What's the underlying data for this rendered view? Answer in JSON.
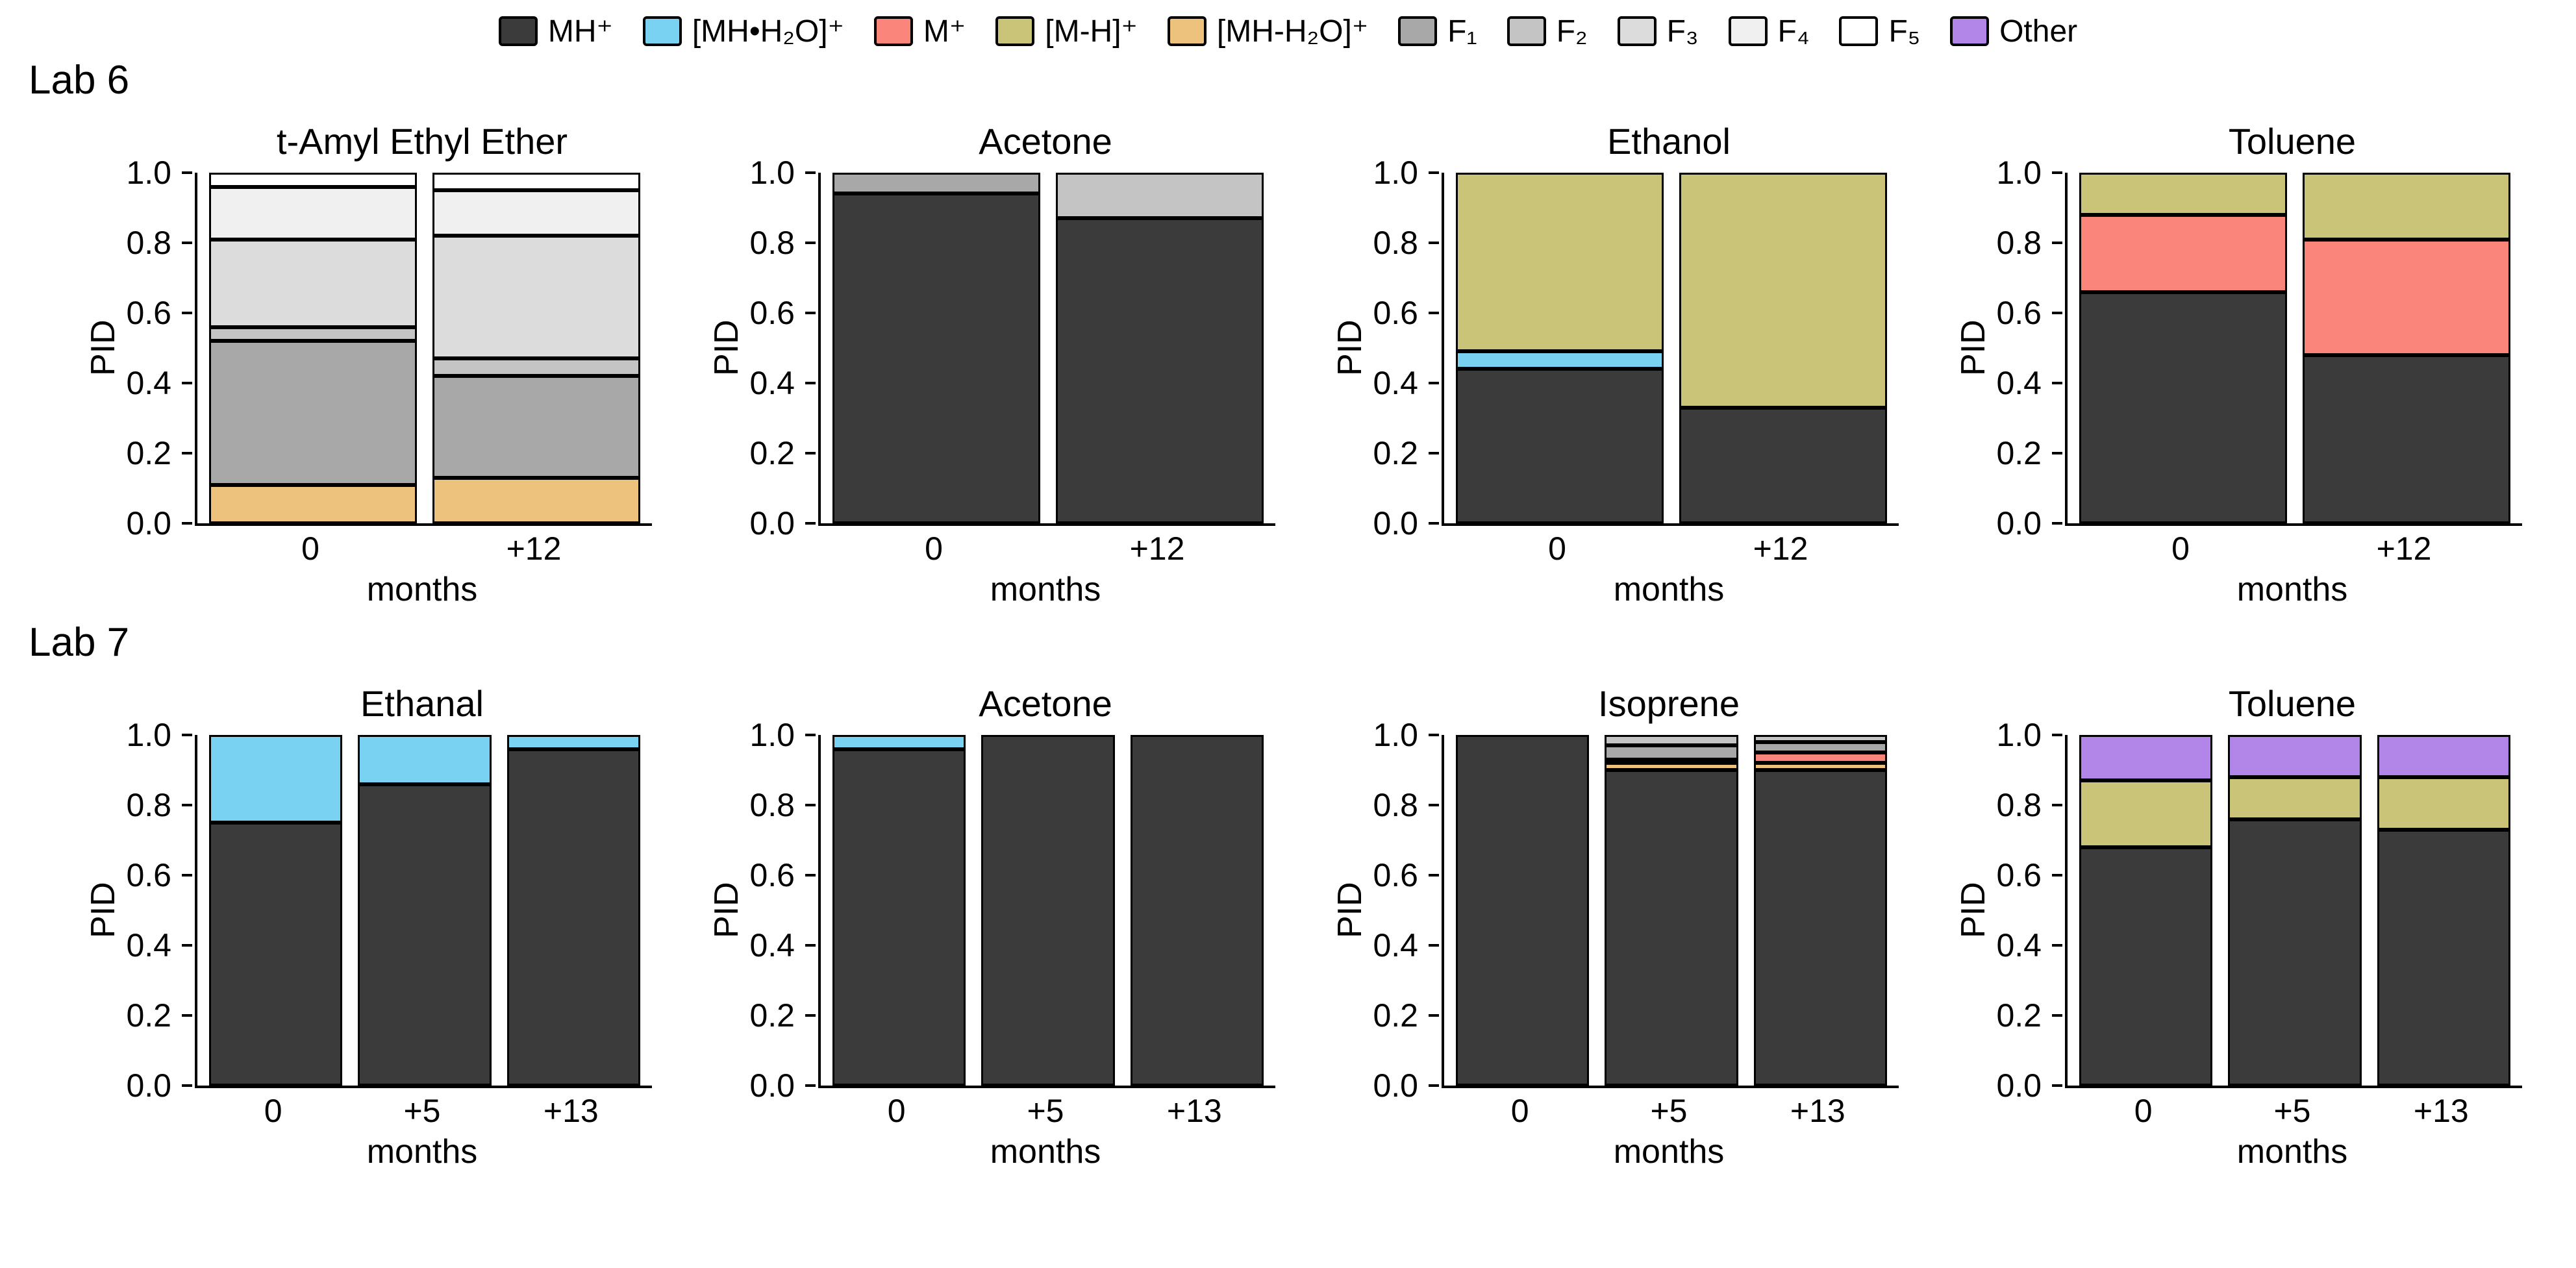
{
  "figure": {
    "rows": [
      {
        "label": "Lab 6"
      },
      {
        "label": "Lab 7"
      }
    ],
    "legend": [
      {
        "label": "MH⁺",
        "series": "MH⁺",
        "color": "#3b3b3b"
      },
      {
        "label": "[MH•H₂O]⁺",
        "series": "[MH•H₂O]⁺",
        "color": "#79d2f2"
      },
      {
        "label": "M⁺",
        "series": "M⁺",
        "color": "#f9857b"
      },
      {
        "label": "[M-H]⁺",
        "series": "[M-H]⁺",
        "color": "#c9c478"
      },
      {
        "label": "[MH-H₂O]⁺",
        "series": "[MH-H₂O]⁺",
        "color": "#ecc27d"
      },
      {
        "label": "F₁",
        "series": "F₁",
        "color": "#a8a8a8"
      },
      {
        "label": "F₂",
        "series": "F₂",
        "color": "#c4c4c4"
      },
      {
        "label": "F₃",
        "series": "F₃",
        "color": "#dcdcdc"
      },
      {
        "label": "F₄",
        "series": "F₄",
        "color": "#f0f0f0"
      },
      {
        "label": "F₅",
        "series": "F₅",
        "color": "#ffffff"
      },
      {
        "label": "Other",
        "series": "Other",
        "color": "#b286e8"
      }
    ]
  },
  "chart_data": [
    {
      "type": "bar",
      "stacked": true,
      "lab": "Lab 6",
      "title": "t-Amyl Ethyl Ether",
      "xlabel": "months",
      "ylabel": "PID",
      "ylim": [
        0,
        1
      ],
      "yticks": [
        0.0,
        0.2,
        0.4,
        0.6,
        0.8,
        1.0
      ],
      "categories": [
        "0",
        "+12"
      ],
      "series": [
        {
          "name": "[MH-H₂O]⁺",
          "values": [
            0.11,
            0.13
          ]
        },
        {
          "name": "F₁",
          "values": [
            0.41,
            0.29
          ]
        },
        {
          "name": "F₂",
          "values": [
            0.04,
            0.05
          ]
        },
        {
          "name": "F₃",
          "values": [
            0.25,
            0.35
          ]
        },
        {
          "name": "F₄",
          "values": [
            0.15,
            0.13
          ]
        },
        {
          "name": "F₅",
          "values": [
            0.04,
            0.05
          ]
        }
      ]
    },
    {
      "type": "bar",
      "stacked": true,
      "lab": "Lab 6",
      "title": "Acetone",
      "xlabel": "months",
      "ylabel": "PID",
      "ylim": [
        0,
        1
      ],
      "yticks": [
        0.0,
        0.2,
        0.4,
        0.6,
        0.8,
        1.0
      ],
      "categories": [
        "0",
        "+12"
      ],
      "series": [
        {
          "name": "MH⁺",
          "values": [
            0.94,
            0.87
          ]
        },
        {
          "name": "F₁",
          "values": [
            0.06,
            0.0
          ]
        },
        {
          "name": "F₂",
          "values": [
            0.0,
            0.13
          ]
        }
      ]
    },
    {
      "type": "bar",
      "stacked": true,
      "lab": "Lab 6",
      "title": "Ethanol",
      "xlabel": "months",
      "ylabel": "PID",
      "ylim": [
        0,
        1
      ],
      "yticks": [
        0.0,
        0.2,
        0.4,
        0.6,
        0.8,
        1.0
      ],
      "categories": [
        "0",
        "+12"
      ],
      "series": [
        {
          "name": "MH⁺",
          "values": [
            0.44,
            0.33
          ]
        },
        {
          "name": "[MH•H₂O]⁺",
          "values": [
            0.05,
            0.0
          ]
        },
        {
          "name": "[M-H]⁺",
          "values": [
            0.51,
            0.67
          ]
        }
      ]
    },
    {
      "type": "bar",
      "stacked": true,
      "lab": "Lab 6",
      "title": "Toluene",
      "xlabel": "months",
      "ylabel": "PID",
      "ylim": [
        0,
        1
      ],
      "yticks": [
        0.0,
        0.2,
        0.4,
        0.6,
        0.8,
        1.0
      ],
      "categories": [
        "0",
        "+12"
      ],
      "series": [
        {
          "name": "MH⁺",
          "values": [
            0.66,
            0.48
          ]
        },
        {
          "name": "M⁺",
          "values": [
            0.22,
            0.33
          ]
        },
        {
          "name": "[M-H]⁺",
          "values": [
            0.12,
            0.19
          ]
        }
      ]
    },
    {
      "type": "bar",
      "stacked": true,
      "lab": "Lab 7",
      "title": "Ethanal",
      "xlabel": "months",
      "ylabel": "PID",
      "ylim": [
        0,
        1
      ],
      "yticks": [
        0.0,
        0.2,
        0.4,
        0.6,
        0.8,
        1.0
      ],
      "categories": [
        "0",
        "+5",
        "+13"
      ],
      "series": [
        {
          "name": "MH⁺",
          "values": [
            0.75,
            0.86,
            0.96
          ]
        },
        {
          "name": "[MH•H₂O]⁺",
          "values": [
            0.25,
            0.14,
            0.04
          ]
        }
      ]
    },
    {
      "type": "bar",
      "stacked": true,
      "lab": "Lab 7",
      "title": "Acetone",
      "xlabel": "months",
      "ylabel": "PID",
      "ylim": [
        0,
        1
      ],
      "yticks": [
        0.0,
        0.2,
        0.4,
        0.6,
        0.8,
        1.0
      ],
      "categories": [
        "0",
        "+5",
        "+13"
      ],
      "series": [
        {
          "name": "MH⁺",
          "values": [
            0.96,
            1.0,
            1.0
          ]
        },
        {
          "name": "[MH•H₂O]⁺",
          "values": [
            0.04,
            0.0,
            0.0
          ]
        }
      ]
    },
    {
      "type": "bar",
      "stacked": true,
      "lab": "Lab 7",
      "title": "Isoprene",
      "xlabel": "months",
      "ylabel": "PID",
      "ylim": [
        0,
        1
      ],
      "yticks": [
        0.0,
        0.2,
        0.4,
        0.6,
        0.8,
        1.0
      ],
      "categories": [
        "0",
        "+5",
        "+13"
      ],
      "series": [
        {
          "name": "MH⁺",
          "values": [
            1.0,
            0.9,
            0.9
          ]
        },
        {
          "name": "[MH-H₂O]⁺",
          "values": [
            0.0,
            0.02,
            0.02
          ]
        },
        {
          "name": "M⁺",
          "values": [
            0.0,
            0.01,
            0.03
          ]
        },
        {
          "name": "F₁",
          "values": [
            0.0,
            0.04,
            0.03
          ]
        },
        {
          "name": "F₂",
          "values": [
            0.0,
            0.03,
            0.02
          ]
        }
      ]
    },
    {
      "type": "bar",
      "stacked": true,
      "lab": "Lab 7",
      "title": "Toluene",
      "xlabel": "months",
      "ylabel": "PID",
      "ylim": [
        0,
        1
      ],
      "yticks": [
        0.0,
        0.2,
        0.4,
        0.6,
        0.8,
        1.0
      ],
      "categories": [
        "0",
        "+5",
        "+13"
      ],
      "series": [
        {
          "name": "MH⁺",
          "values": [
            0.68,
            0.76,
            0.73
          ]
        },
        {
          "name": "[M-H]⁺",
          "values": [
            0.19,
            0.12,
            0.15
          ]
        },
        {
          "name": "Other",
          "values": [
            0.13,
            0.12,
            0.12
          ]
        }
      ]
    }
  ]
}
